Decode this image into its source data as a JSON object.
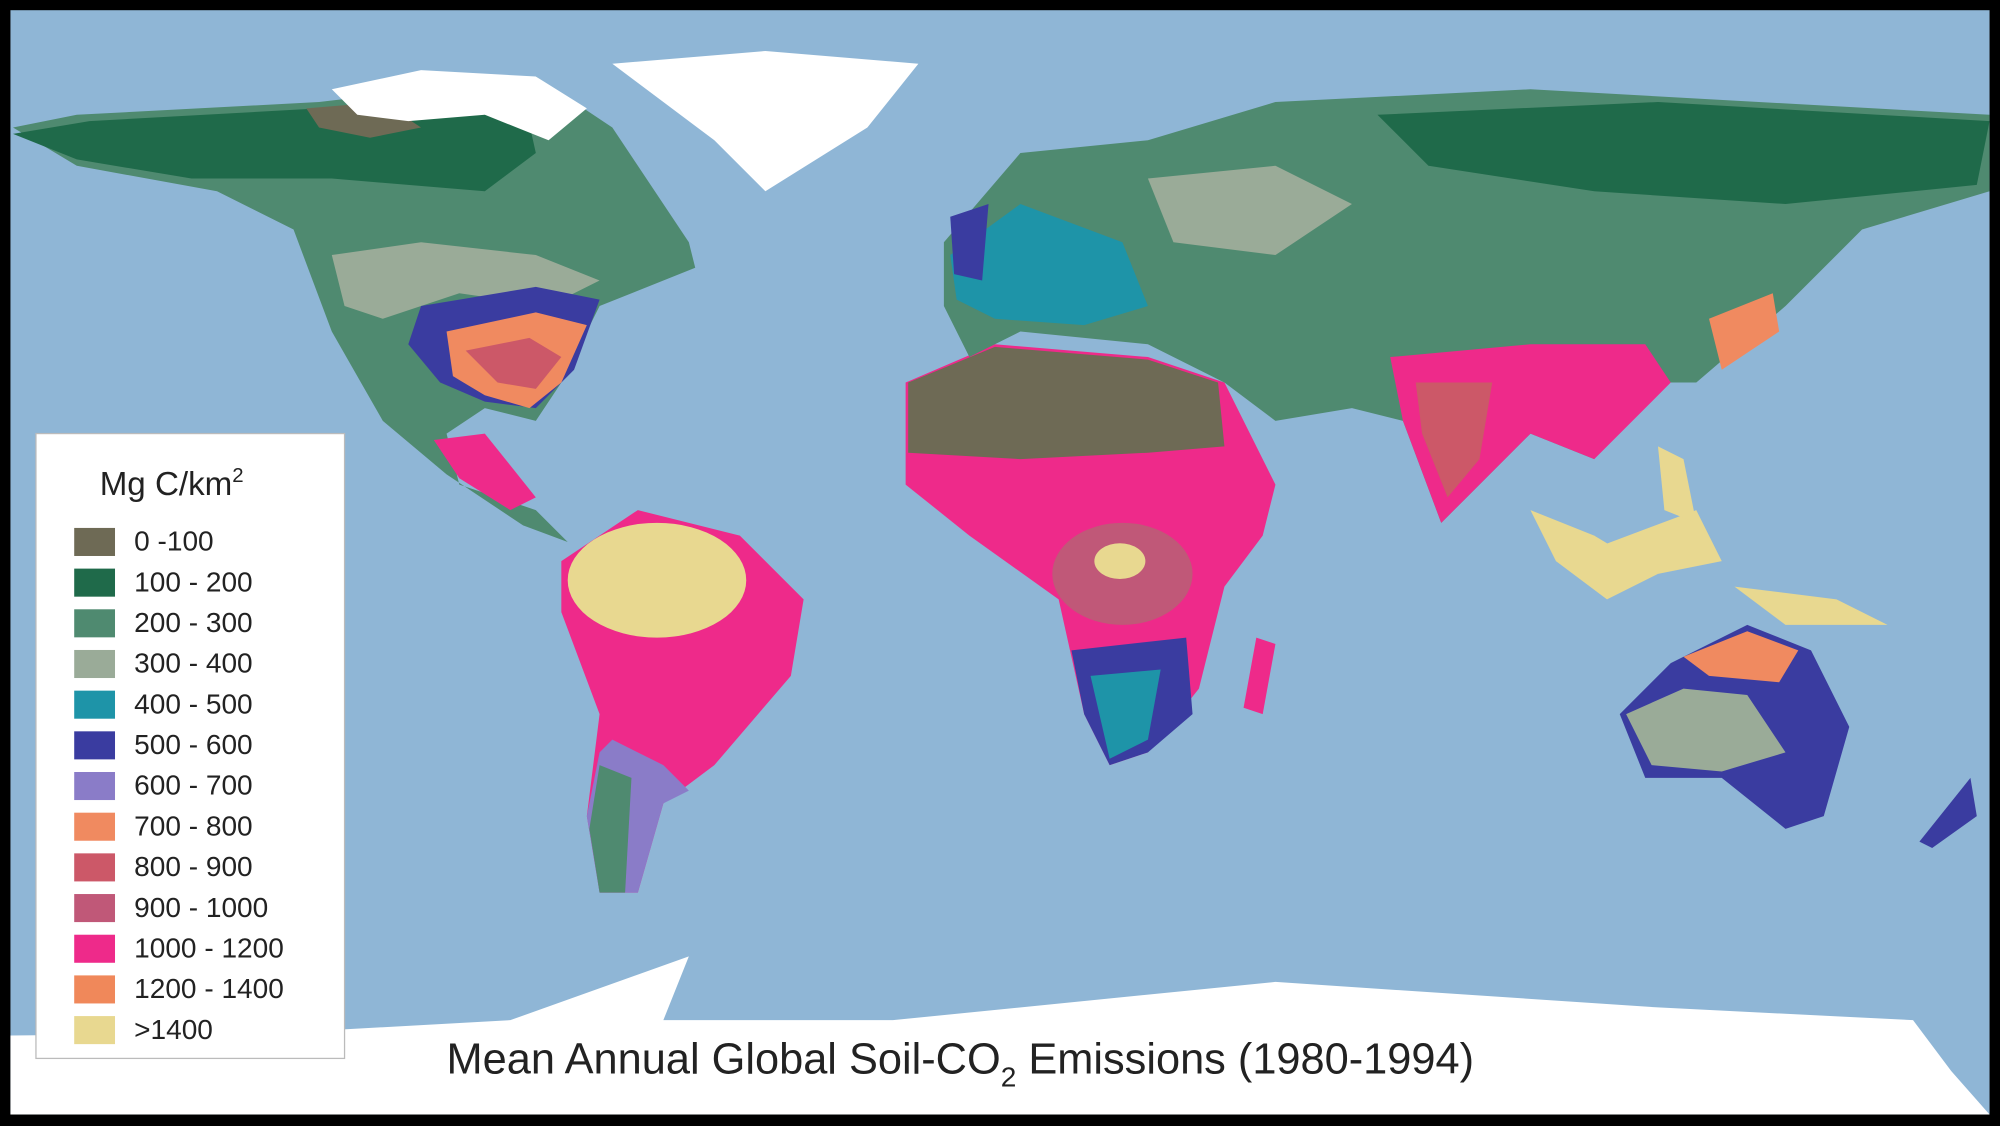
{
  "title": {
    "before": "Mean Annual Global Soil-CO",
    "subscript": "2",
    "after": " Emissions (1980-1994)"
  },
  "legend": {
    "title": {
      "text": "Mg C/km",
      "superscript": "2"
    },
    "items": [
      {
        "label": "0 -100",
        "color": "#6e6a55"
      },
      {
        "label": "100 - 200",
        "color": "#1f6a4a"
      },
      {
        "label": "200 - 300",
        "color": "#4f8a70"
      },
      {
        "label": "300 - 400",
        "color": "#9aab98"
      },
      {
        "label": "400 - 500",
        "color": "#1e94a8"
      },
      {
        "label": "500 - 600",
        "color": "#3a3ca0"
      },
      {
        "label": "600 - 700",
        "color": "#8a7cc8"
      },
      {
        "label": "700 - 800",
        "color": "#f08a60"
      },
      {
        "label": "800 - 900",
        "color": "#cc5868"
      },
      {
        "label": "900 - 1000",
        "color": "#c05878"
      },
      {
        "label": "1000 - 1200",
        "color": "#ee2a8a"
      },
      {
        "label": "1200 - 1400",
        "color": "#f0885a"
      },
      {
        "label": ">1400",
        "color": "#e8d890"
      }
    ]
  }
}
